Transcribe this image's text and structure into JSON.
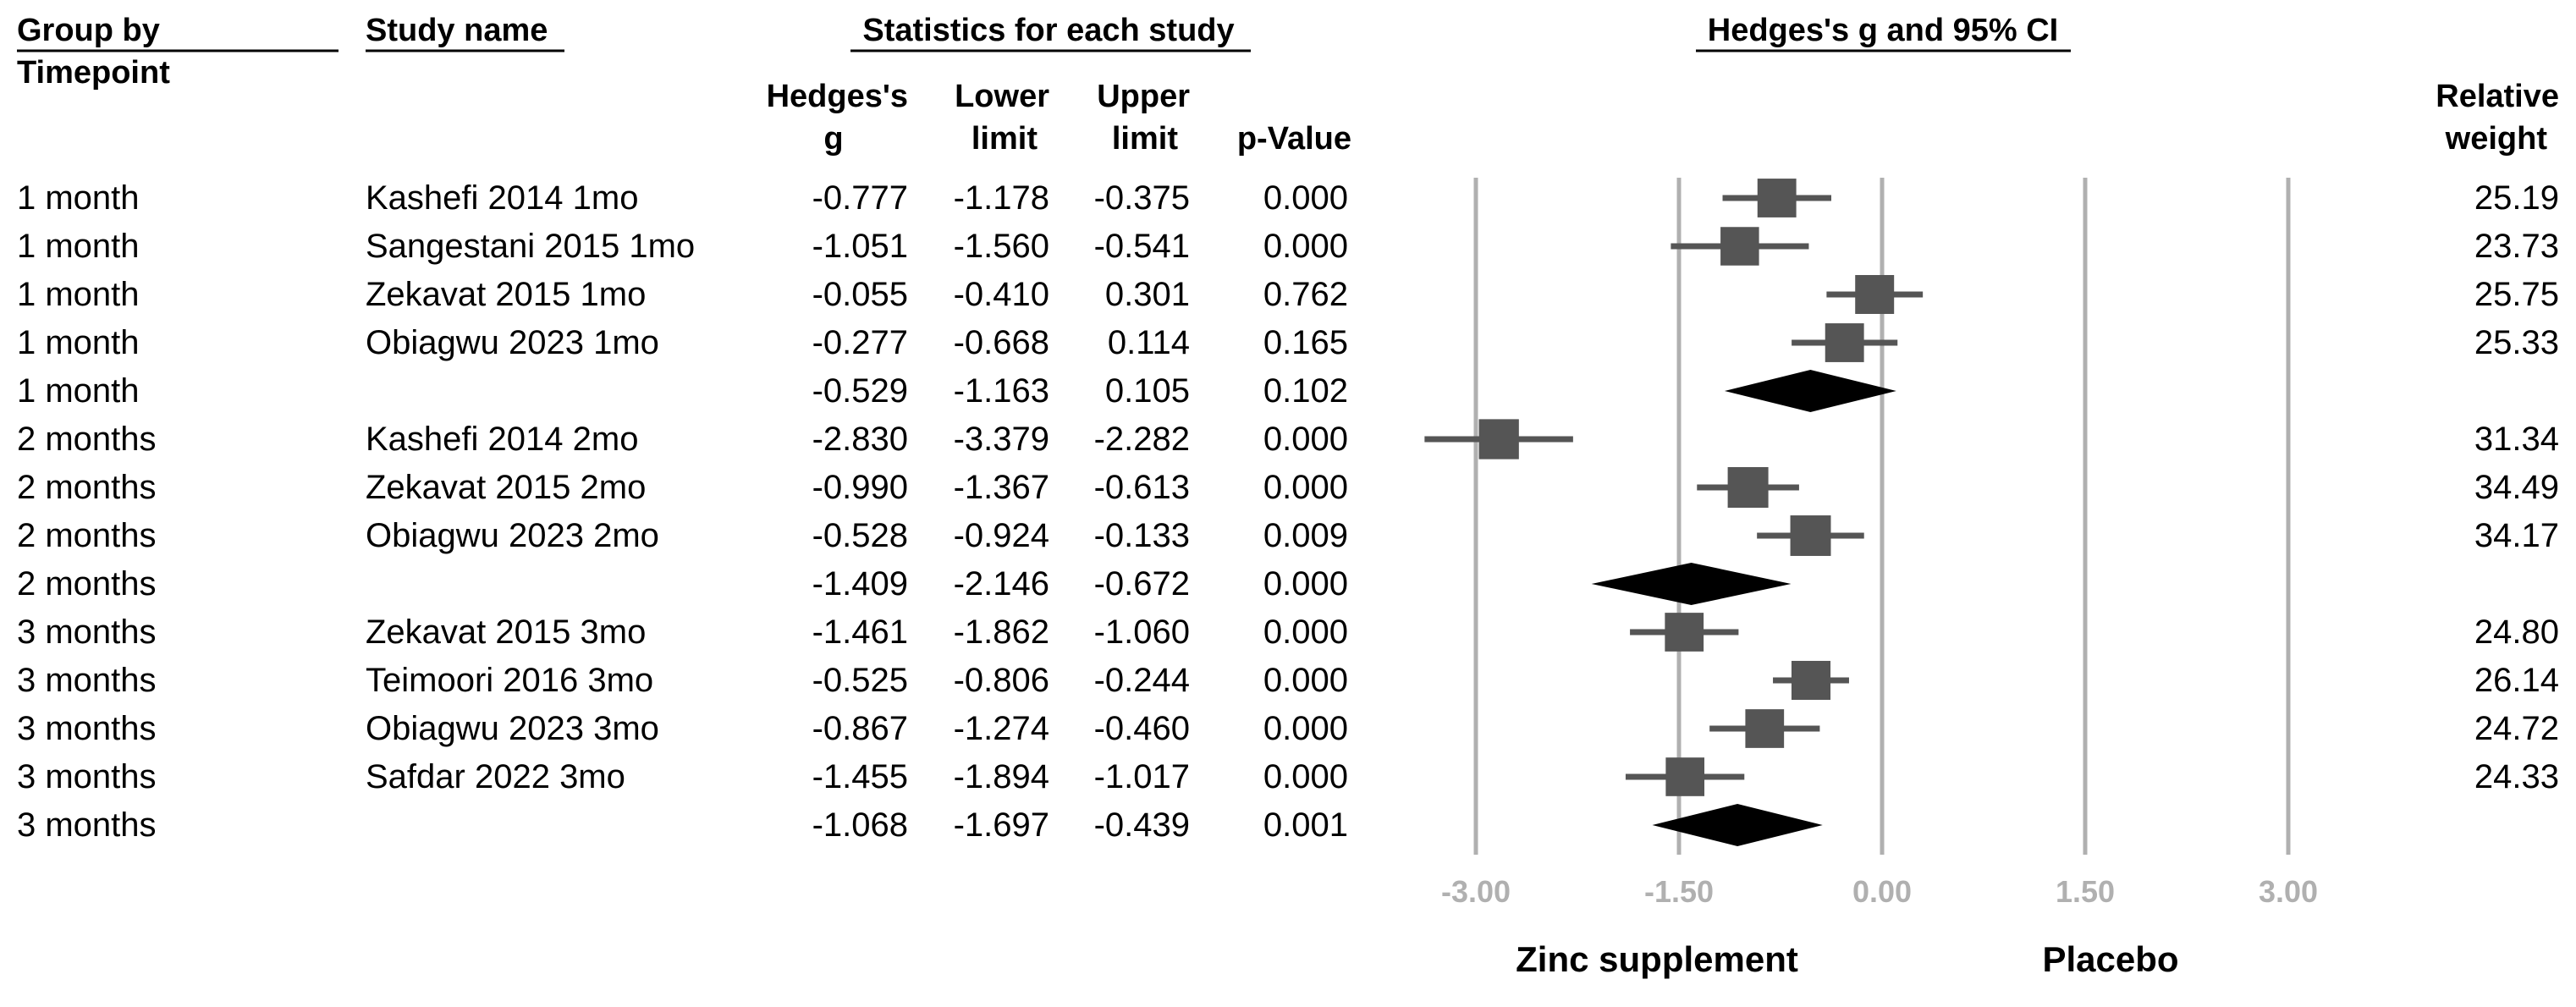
{
  "chart_data": {
    "type": "forest",
    "title": "Hedges's g and 95% CI",
    "header": {
      "group_by": "Group by",
      "timepoint": "Timepoint",
      "study_name": "Study name",
      "stats_title": "Statistics for each study",
      "col_g_1": "Hedges's",
      "col_g_2": "g",
      "col_lower_1": "Lower",
      "col_lower_2": "limit",
      "col_upper_1": "Upper",
      "col_upper_2": "limit",
      "col_p": "p-Value",
      "col_weight_1": "Relative",
      "col_weight_2": "weight"
    },
    "x_ticks": [
      -3.0,
      -1.5,
      0.0,
      1.5,
      3.0
    ],
    "x_tick_labels": [
      "-3.00",
      "-1.50",
      "0.00",
      "1.50",
      "3.00"
    ],
    "xlim": [
      -3.0,
      3.0
    ],
    "xlabel_left": "Zinc supplement",
    "xlabel_right": "Placebo",
    "rows": [
      {
        "group": "1 month",
        "study": "Kashefi 2014 1mo",
        "g": -0.777,
        "lower": -1.178,
        "upper": -0.375,
        "p": "0.000",
        "weight": 25.19,
        "g_text": "-0.777",
        "lower_text": "-1.178",
        "upper_text": "-0.375",
        "weight_text": "25.19",
        "summary": false
      },
      {
        "group": "1 month",
        "study": "Sangestani 2015 1mo",
        "g": -1.051,
        "lower": -1.56,
        "upper": -0.541,
        "p": "0.000",
        "weight": 23.73,
        "g_text": "-1.051",
        "lower_text": "-1.560",
        "upper_text": "-0.541",
        "weight_text": "23.73",
        "summary": false
      },
      {
        "group": "1 month",
        "study": "Zekavat 2015 1mo",
        "g": -0.055,
        "lower": -0.41,
        "upper": 0.301,
        "p": "0.762",
        "weight": 25.75,
        "g_text": "-0.055",
        "lower_text": "-0.410",
        "upper_text": "0.301",
        "weight_text": "25.75",
        "summary": false
      },
      {
        "group": "1 month",
        "study": "Obiagwu 2023 1mo",
        "g": -0.277,
        "lower": -0.668,
        "upper": 0.114,
        "p": "0.165",
        "weight": 25.33,
        "g_text": "-0.277",
        "lower_text": "-0.668",
        "upper_text": "0.114",
        "weight_text": "25.33",
        "summary": false
      },
      {
        "group": "1 month",
        "study": "",
        "g": -0.529,
        "lower": -1.163,
        "upper": 0.105,
        "p": "0.102",
        "weight": null,
        "g_text": "-0.529",
        "lower_text": "-1.163",
        "upper_text": "0.105",
        "weight_text": "",
        "summary": true
      },
      {
        "group": "2 months",
        "study": "Kashefi 2014 2mo",
        "g": -2.83,
        "lower": -3.379,
        "upper": -2.282,
        "p": "0.000",
        "weight": 31.34,
        "g_text": "-2.830",
        "lower_text": "-3.379",
        "upper_text": "-2.282",
        "weight_text": "31.34",
        "summary": false
      },
      {
        "group": "2 months",
        "study": "Zekavat 2015 2mo",
        "g": -0.99,
        "lower": -1.367,
        "upper": -0.613,
        "p": "0.000",
        "weight": 34.49,
        "g_text": "-0.990",
        "lower_text": "-1.367",
        "upper_text": "-0.613",
        "weight_text": "34.49",
        "summary": false
      },
      {
        "group": "2 months",
        "study": "Obiagwu 2023 2mo",
        "g": -0.528,
        "lower": -0.924,
        "upper": -0.133,
        "p": "0.009",
        "weight": 34.17,
        "g_text": "-0.528",
        "lower_text": "-0.924",
        "upper_text": "-0.133",
        "weight_text": "34.17",
        "summary": false
      },
      {
        "group": "2 months",
        "study": "",
        "g": -1.409,
        "lower": -2.146,
        "upper": -0.672,
        "p": "0.000",
        "weight": null,
        "g_text": "-1.409",
        "lower_text": "-2.146",
        "upper_text": "-0.672",
        "weight_text": "",
        "summary": true
      },
      {
        "group": "3 months",
        "study": "Zekavat 2015 3mo",
        "g": -1.461,
        "lower": -1.862,
        "upper": -1.06,
        "p": "0.000",
        "weight": 24.8,
        "g_text": "-1.461",
        "lower_text": "-1.862",
        "upper_text": "-1.060",
        "weight_text": "24.80",
        "summary": false
      },
      {
        "group": "3 months",
        "study": "Teimoori 2016 3mo",
        "g": -0.525,
        "lower": -0.806,
        "upper": -0.244,
        "p": "0.000",
        "weight": 26.14,
        "g_text": "-0.525",
        "lower_text": "-0.806",
        "upper_text": "-0.244",
        "weight_text": "26.14",
        "summary": false
      },
      {
        "group": "3 months",
        "study": "Obiagwu 2023 3mo",
        "g": -0.867,
        "lower": -1.274,
        "upper": -0.46,
        "p": "0.000",
        "weight": 24.72,
        "g_text": "-0.867",
        "lower_text": "-1.274",
        "upper_text": "-0.460",
        "weight_text": "24.72",
        "summary": false
      },
      {
        "group": "3 months",
        "study": "Safdar 2022 3mo",
        "g": -1.455,
        "lower": -1.894,
        "upper": -1.017,
        "p": "0.000",
        "weight": 24.33,
        "g_text": "-1.455",
        "lower_text": "-1.894",
        "upper_text": "-1.017",
        "weight_text": "24.33",
        "summary": false
      },
      {
        "group": "3 months",
        "study": "",
        "g": -1.068,
        "lower": -1.697,
        "upper": -0.439,
        "p": "0.001",
        "weight": null,
        "g_text": "-1.068",
        "lower_text": "-1.697",
        "upper_text": "-0.439",
        "weight_text": "",
        "summary": true
      }
    ]
  },
  "colors": {
    "marker": "#555555",
    "diamond": "#000000",
    "gridline": "#b0b0b0",
    "tick_text": "#b0b0b0"
  }
}
